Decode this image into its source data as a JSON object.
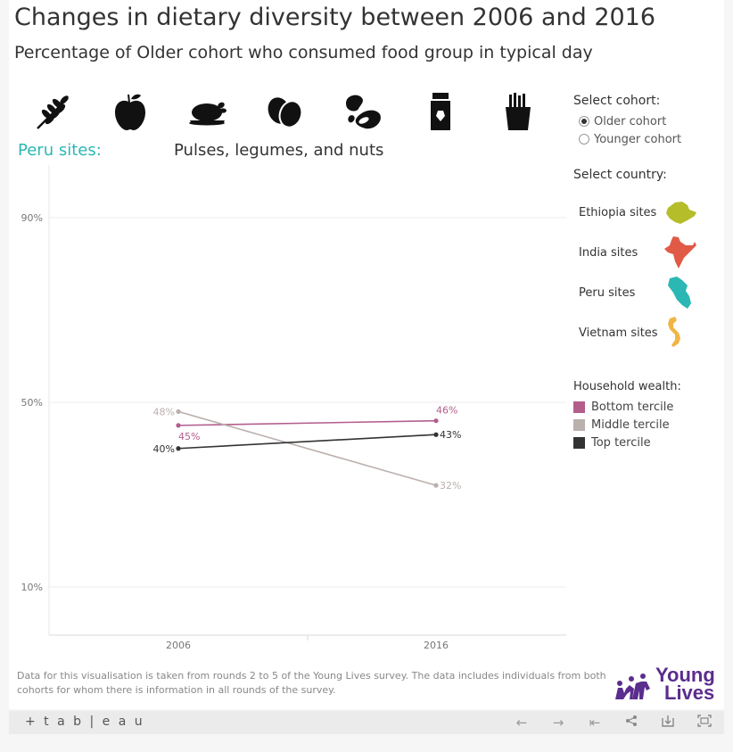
{
  "header": {
    "title": "Changes in dietary diversity between 2006 and 2016",
    "subtitle": "Percentage of Older cohort who consumed food group in typical day"
  },
  "food_groups": [
    {
      "icon": "grain-icon"
    },
    {
      "icon": "apple-icon"
    },
    {
      "icon": "roast-chicken-icon"
    },
    {
      "icon": "eggs-icon"
    },
    {
      "icon": "beans-icon"
    },
    {
      "icon": "milk-carton-icon"
    },
    {
      "icon": "fries-icon"
    }
  ],
  "selection": {
    "site_label": "Peru sites:",
    "food_label": "Pulses, legumes, and nuts"
  },
  "filters": {
    "cohort_heading": "Select cohort:",
    "cohort_options": [
      {
        "label": "Older cohort",
        "selected": true
      },
      {
        "label": "Younger cohort",
        "selected": false
      }
    ],
    "country_heading": "Select country:",
    "countries": [
      {
        "label": "Ethiopia sites",
        "icon": "ethiopia-map-icon",
        "color": "#b5bd2a"
      },
      {
        "label": "India sites",
        "icon": "india-map-icon",
        "color": "#e05a45"
      },
      {
        "label": "Peru sites",
        "icon": "peru-map-icon",
        "color": "#2bb7b3"
      },
      {
        "label": "Vietnam sites",
        "icon": "vietnam-map-icon",
        "color": "#f0b544"
      }
    ]
  },
  "legend": {
    "heading": "Household wealth:",
    "items": [
      {
        "label": "Bottom tercile",
        "color": "#b35d8d"
      },
      {
        "label": "Middle tercile",
        "color": "#bab0ac"
      },
      {
        "label": "Top tercile",
        "color": "#333333"
      }
    ]
  },
  "chart_data": {
    "type": "line",
    "x": [
      "2006",
      "2016"
    ],
    "y_ticks": [
      "10%",
      "50%",
      "90%"
    ],
    "ylim": [
      0,
      100
    ],
    "grid": true,
    "series": [
      {
        "name": "Bottom tercile",
        "values": [
          45,
          46
        ],
        "labels": [
          "45%",
          "46%"
        ],
        "color": "#b35d8d"
      },
      {
        "name": "Middle tercile",
        "values": [
          48,
          32
        ],
        "labels": [
          "48%",
          "32%"
        ],
        "color": "#bab0ac"
      },
      {
        "name": "Top tercile",
        "values": [
          40,
          43
        ],
        "labels": [
          "40%",
          "43%"
        ],
        "color": "#333333"
      }
    ]
  },
  "footnote": "Data for this visualisation is taken from rounds 2 to 5 of the Young Lives survey. The data includes individuals from both cohorts for whom there is information in all rounds of the survey.",
  "logo": {
    "line1": "Young",
    "line2": "Lives",
    "color": "#5b2d8e"
  },
  "toolbar": {
    "brand": "+ t a b | e a u"
  }
}
